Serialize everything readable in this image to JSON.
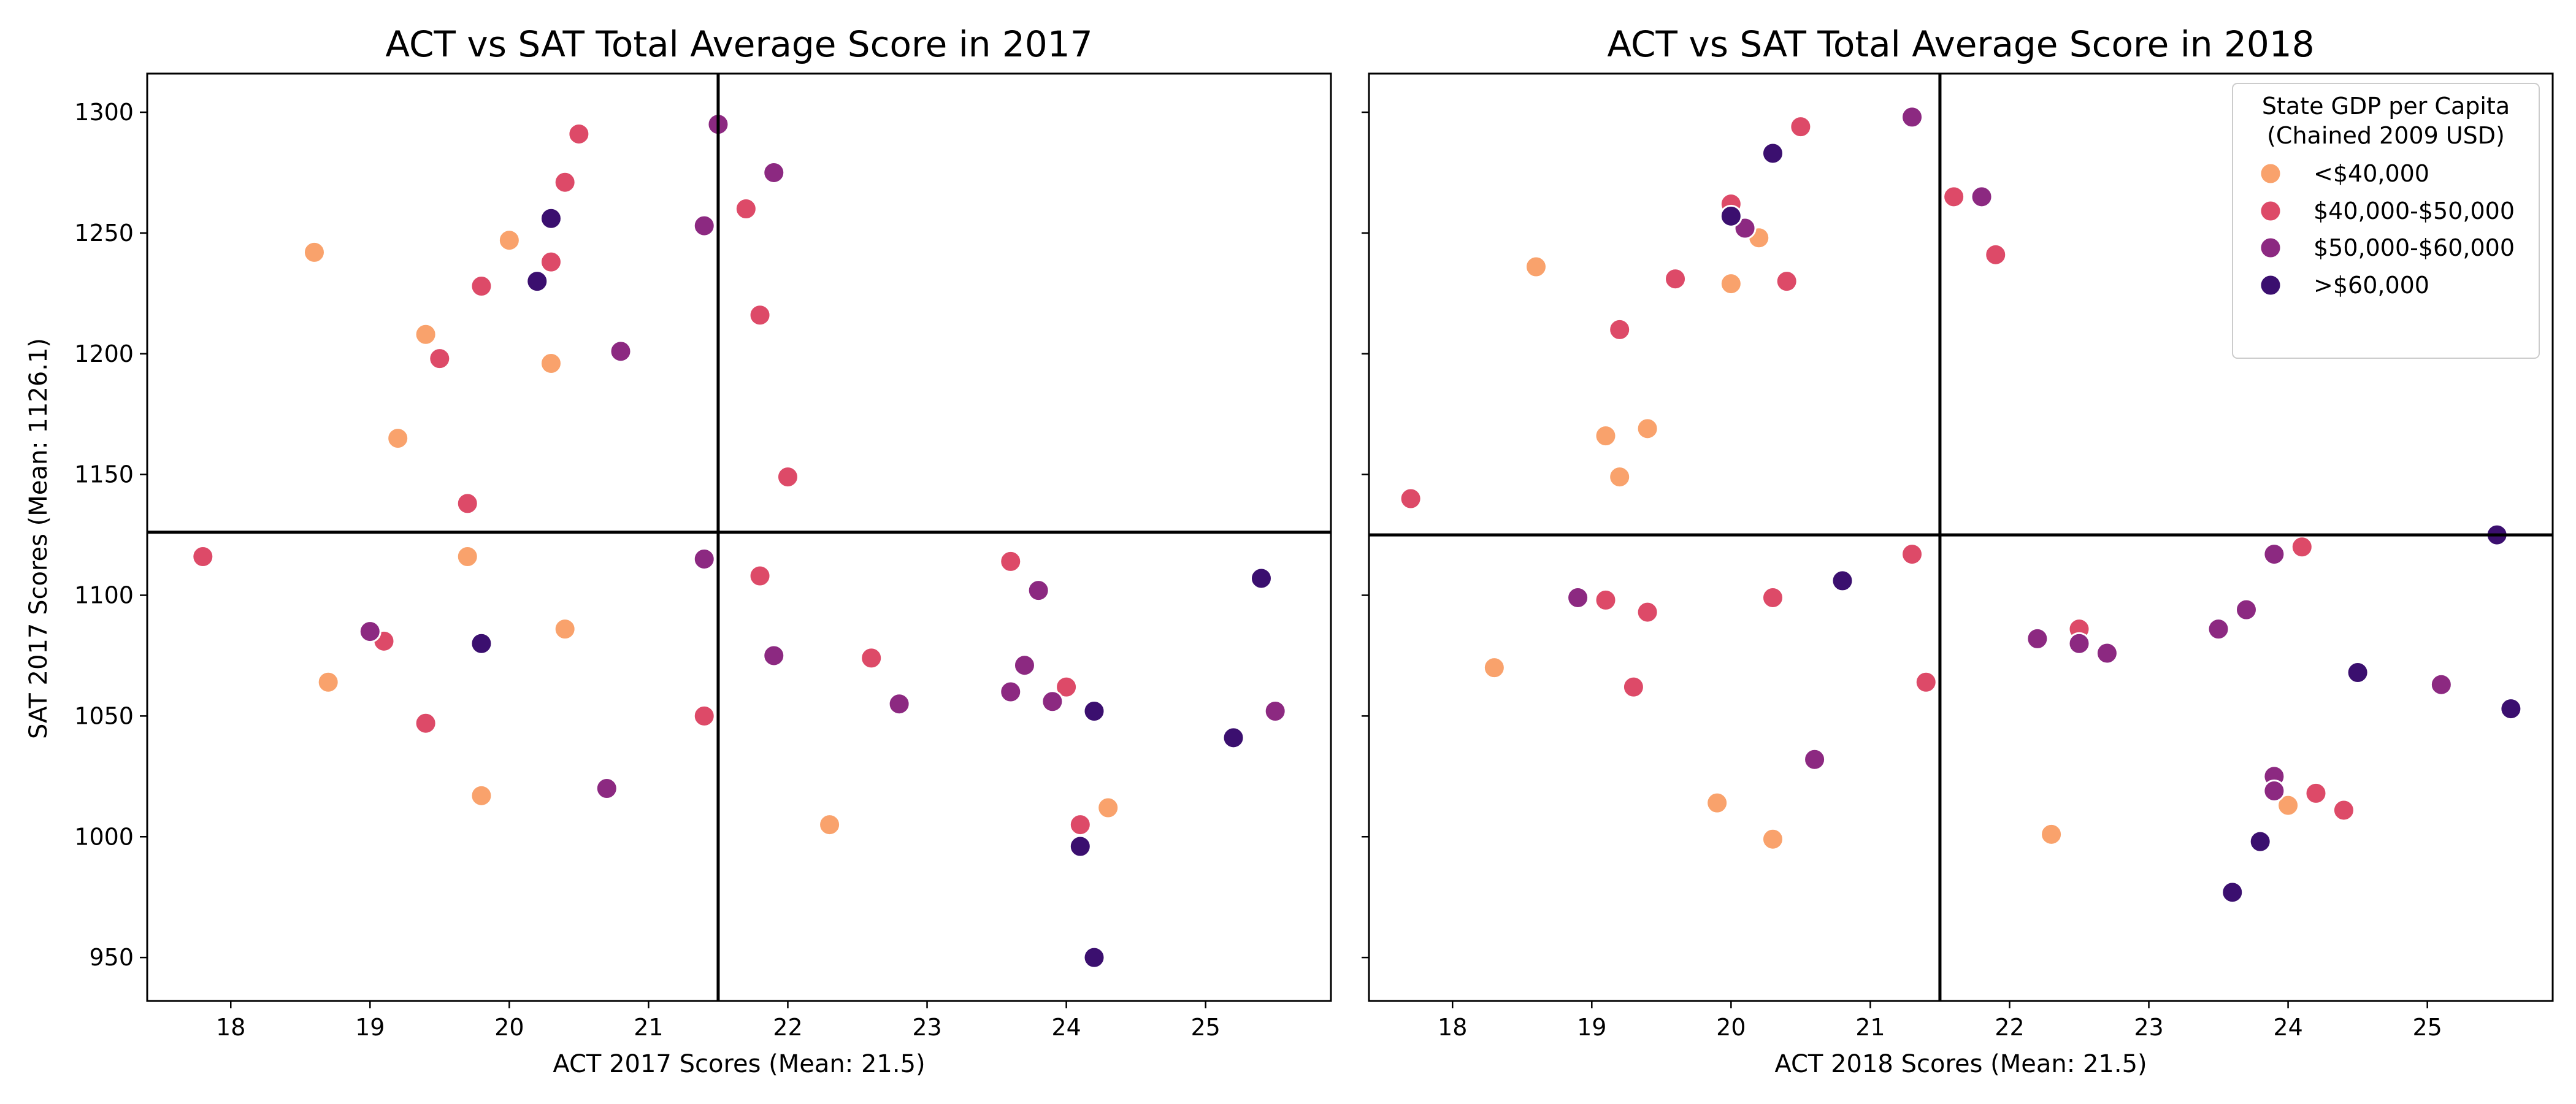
{
  "chart_data": [
    {
      "type": "scatter",
      "title": "ACT vs SAT Total Average Score in 2017",
      "xlabel": "ACT 2017 Scores (Mean: 21.5)",
      "ylabel": "SAT 2017 Scores (Mean: 1126.1)",
      "xlim": [
        17.4,
        25.9
      ],
      "ylim": [
        932,
        1316
      ],
      "xticks": [
        "18",
        "19",
        "20",
        "21",
        "22",
        "23",
        "24",
        "25"
      ],
      "yticks": [
        "950",
        "1000",
        "1050",
        "1100",
        "1150",
        "1200",
        "1250",
        "1300"
      ],
      "ytick_labels_visible": true,
      "mean_lines": {
        "x": 21.5,
        "y": 1126.1
      },
      "grid": false,
      "points": [
        {
          "x": 18.6,
          "y": 1242,
          "g": 0
        },
        {
          "x": 19.4,
          "y": 1208,
          "g": 0
        },
        {
          "x": 20.0,
          "y": 1247,
          "g": 0
        },
        {
          "x": 20.3,
          "y": 1196,
          "g": 0
        },
        {
          "x": 19.2,
          "y": 1165,
          "g": 0
        },
        {
          "x": 19.7,
          "y": 1116,
          "g": 0
        },
        {
          "x": 18.7,
          "y": 1064,
          "g": 0
        },
        {
          "x": 20.4,
          "y": 1086,
          "g": 0
        },
        {
          "x": 19.8,
          "y": 1017,
          "g": 0
        },
        {
          "x": 22.3,
          "y": 1005,
          "g": 0
        },
        {
          "x": 24.3,
          "y": 1012,
          "g": 0
        },
        {
          "x": 20.5,
          "y": 1291,
          "g": 1
        },
        {
          "x": 20.4,
          "y": 1271,
          "g": 1
        },
        {
          "x": 20.3,
          "y": 1238,
          "g": 1
        },
        {
          "x": 19.8,
          "y": 1228,
          "g": 1
        },
        {
          "x": 19.5,
          "y": 1198,
          "g": 1
        },
        {
          "x": 21.7,
          "y": 1260,
          "g": 1
        },
        {
          "x": 21.8,
          "y": 1216,
          "g": 1
        },
        {
          "x": 22.0,
          "y": 1149,
          "g": 1
        },
        {
          "x": 19.7,
          "y": 1138,
          "g": 1
        },
        {
          "x": 17.8,
          "y": 1116,
          "g": 1
        },
        {
          "x": 19.1,
          "y": 1081,
          "g": 1
        },
        {
          "x": 19.4,
          "y": 1047,
          "g": 1
        },
        {
          "x": 21.4,
          "y": 1050,
          "g": 1
        },
        {
          "x": 21.8,
          "y": 1108,
          "g": 1
        },
        {
          "x": 22.6,
          "y": 1074,
          "g": 1
        },
        {
          "x": 23.6,
          "y": 1114,
          "g": 1
        },
        {
          "x": 24.0,
          "y": 1062,
          "g": 1
        },
        {
          "x": 24.1,
          "y": 1005,
          "g": 1
        },
        {
          "x": 21.5,
          "y": 1295,
          "g": 2
        },
        {
          "x": 21.9,
          "y": 1275,
          "g": 2
        },
        {
          "x": 21.4,
          "y": 1253,
          "g": 2
        },
        {
          "x": 20.8,
          "y": 1201,
          "g": 2
        },
        {
          "x": 21.4,
          "y": 1115,
          "g": 2
        },
        {
          "x": 19.0,
          "y": 1085,
          "g": 2
        },
        {
          "x": 21.9,
          "y": 1075,
          "g": 2
        },
        {
          "x": 20.7,
          "y": 1020,
          "g": 2
        },
        {
          "x": 22.8,
          "y": 1055,
          "g": 2
        },
        {
          "x": 23.6,
          "y": 1060,
          "g": 2
        },
        {
          "x": 23.7,
          "y": 1071,
          "g": 2
        },
        {
          "x": 23.8,
          "y": 1102,
          "g": 2
        },
        {
          "x": 23.9,
          "y": 1056,
          "g": 2
        },
        {
          "x": 25.5,
          "y": 1052,
          "g": 2
        },
        {
          "x": 20.3,
          "y": 1256,
          "g": 3
        },
        {
          "x": 20.2,
          "y": 1230,
          "g": 3
        },
        {
          "x": 19.8,
          "y": 1080,
          "g": 3
        },
        {
          "x": 24.2,
          "y": 1052,
          "g": 3
        },
        {
          "x": 24.1,
          "y": 996,
          "g": 3
        },
        {
          "x": 24.2,
          "y": 950,
          "g": 3
        },
        {
          "x": 25.2,
          "y": 1041,
          "g": 3
        },
        {
          "x": 25.4,
          "y": 1107,
          "g": 3
        }
      ]
    },
    {
      "type": "scatter",
      "title": "ACT vs SAT Total Average Score in 2018",
      "xlabel": "ACT 2018 Scores (Mean: 21.5)",
      "ylabel": "",
      "xlim": [
        17.4,
        25.9
      ],
      "ylim": [
        932,
        1316
      ],
      "xticks": [
        "18",
        "19",
        "20",
        "21",
        "22",
        "23",
        "24",
        "25"
      ],
      "yticks": [
        "950",
        "1000",
        "1050",
        "1100",
        "1150",
        "1200",
        "1250",
        "1300"
      ],
      "ytick_labels_visible": false,
      "mean_lines": {
        "x": 21.5,
        "y": 1125
      },
      "grid": false,
      "legend": {
        "placement": "top-right",
        "title": [
          "State GDP per Capita",
          "(Chained 2009 USD)"
        ],
        "entries": [
          "<$40,000",
          "$40,000-$50,000",
          "$50,000-$60,000",
          ">$60,000"
        ]
      },
      "points": [
        {
          "x": 18.6,
          "y": 1236,
          "g": 0
        },
        {
          "x": 20.0,
          "y": 1229,
          "g": 0
        },
        {
          "x": 20.2,
          "y": 1248,
          "g": 0
        },
        {
          "x": 19.1,
          "y": 1166,
          "g": 0
        },
        {
          "x": 19.4,
          "y": 1169,
          "g": 0
        },
        {
          "x": 19.2,
          "y": 1149,
          "g": 0
        },
        {
          "x": 18.3,
          "y": 1070,
          "g": 0
        },
        {
          "x": 19.9,
          "y": 1014,
          "g": 0
        },
        {
          "x": 20.3,
          "y": 999,
          "g": 0
        },
        {
          "x": 22.3,
          "y": 1001,
          "g": 0
        },
        {
          "x": 24.0,
          "y": 1013,
          "g": 0
        },
        {
          "x": 22.5,
          "y": 1085,
          "g": 0
        },
        {
          "x": 20.5,
          "y": 1294,
          "g": 1
        },
        {
          "x": 20.0,
          "y": 1262,
          "g": 1
        },
        {
          "x": 20.4,
          "y": 1230,
          "g": 1
        },
        {
          "x": 19.6,
          "y": 1231,
          "g": 1
        },
        {
          "x": 19.2,
          "y": 1210,
          "g": 1
        },
        {
          "x": 17.7,
          "y": 1140,
          "g": 1
        },
        {
          "x": 21.6,
          "y": 1265,
          "g": 1
        },
        {
          "x": 21.9,
          "y": 1241,
          "g": 1
        },
        {
          "x": 19.1,
          "y": 1098,
          "g": 1
        },
        {
          "x": 19.4,
          "y": 1093,
          "g": 1
        },
        {
          "x": 19.3,
          "y": 1062,
          "g": 1
        },
        {
          "x": 20.3,
          "y": 1099,
          "g": 1
        },
        {
          "x": 21.3,
          "y": 1117,
          "g": 1
        },
        {
          "x": 21.4,
          "y": 1064,
          "g": 1
        },
        {
          "x": 22.5,
          "y": 1086,
          "g": 1
        },
        {
          "x": 24.1,
          "y": 1120,
          "g": 1
        },
        {
          "x": 24.2,
          "y": 1018,
          "g": 1
        },
        {
          "x": 24.4,
          "y": 1011,
          "g": 1
        },
        {
          "x": 21.3,
          "y": 1298,
          "g": 2
        },
        {
          "x": 21.8,
          "y": 1265,
          "g": 2
        },
        {
          "x": 20.1,
          "y": 1252,
          "g": 2
        },
        {
          "x": 18.9,
          "y": 1099,
          "g": 2
        },
        {
          "x": 20.6,
          "y": 1032,
          "g": 2
        },
        {
          "x": 22.2,
          "y": 1082,
          "g": 2
        },
        {
          "x": 22.5,
          "y": 1080,
          "g": 2
        },
        {
          "x": 22.7,
          "y": 1076,
          "g": 2
        },
        {
          "x": 23.5,
          "y": 1086,
          "g": 2
        },
        {
          "x": 23.7,
          "y": 1094,
          "g": 2
        },
        {
          "x": 23.9,
          "y": 1117,
          "g": 2
        },
        {
          "x": 23.9,
          "y": 1025,
          "g": 2
        },
        {
          "x": 23.9,
          "y": 1019,
          "g": 2
        },
        {
          "x": 25.1,
          "y": 1063,
          "g": 2
        },
        {
          "x": 20.3,
          "y": 1283,
          "g": 3
        },
        {
          "x": 20.0,
          "y": 1257,
          "g": 3
        },
        {
          "x": 20.8,
          "y": 1106,
          "g": 3
        },
        {
          "x": 25.5,
          "y": 1125,
          "g": 3
        },
        {
          "x": 24.5,
          "y": 1068,
          "g": 3
        },
        {
          "x": 25.6,
          "y": 1053,
          "g": 3
        },
        {
          "x": 23.8,
          "y": 998,
          "g": 3
        },
        {
          "x": 23.6,
          "y": 977,
          "g": 3
        }
      ]
    }
  ],
  "colors": {
    "group_colors": [
      "#f9a26c",
      "#dd4a68",
      "#8c2981",
      "#3b0f6f"
    ],
    "axis": "#000000",
    "marker_edge": "#ffffff"
  }
}
